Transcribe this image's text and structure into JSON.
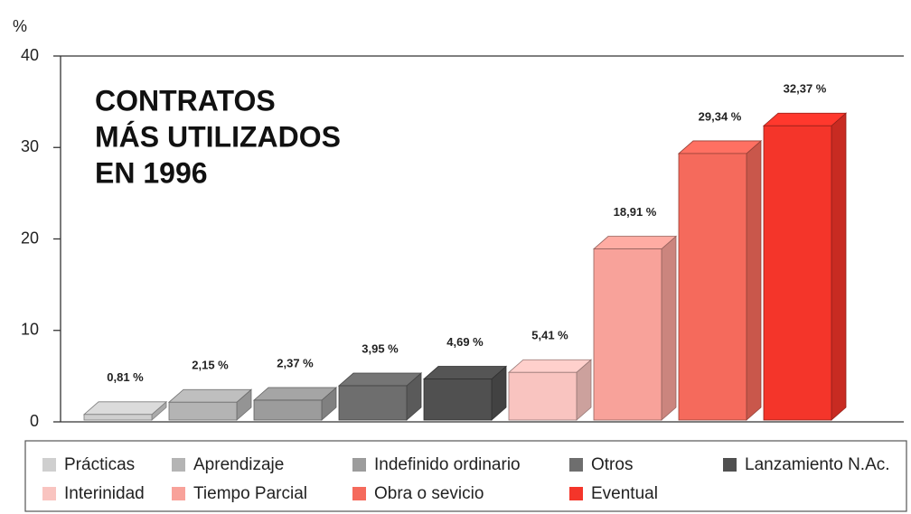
{
  "chart_data": {
    "type": "bar3d",
    "title": [
      "CONTRATOS",
      "MÁS UTILIZADOS",
      "EN 1996"
    ],
    "y_label": "%",
    "categories": [
      "Prácticas",
      "Aprendizaje",
      "Indefinido ordinario",
      "Otros",
      "Lanzamiento N.Ac.",
      "Interinidad",
      "Tiempo Parcial",
      "Obra o sevicio",
      "Eventual"
    ],
    "values": [
      0.81,
      2.15,
      2.37,
      3.95,
      4.69,
      5.41,
      18.91,
      29.34,
      32.37
    ],
    "value_labels": [
      "0,81 %",
      "2,15 %",
      "2,37 %",
      "3,95 %",
      "4,69 %",
      "5,41 %",
      "18,91 %",
      "29,34 %",
      "32,37 %"
    ],
    "colors": [
      "#cfcfcf",
      "#b4b4b4",
      "#9c9c9c",
      "#6e6e6e",
      "#505050",
      "#f9c4c0",
      "#f8a29a",
      "#f56a5c",
      "#f4352a"
    ],
    "ylim": [
      0,
      40
    ],
    "yticks": [
      0,
      10,
      20,
      30,
      40
    ]
  }
}
